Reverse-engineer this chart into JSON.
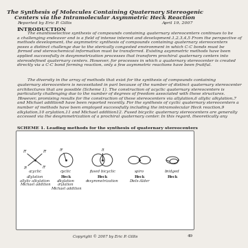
{
  "title_line1": "The Synthesis of Molecules Containing Quaternary Stereogenic",
  "title_line2": "Centers via the Intramolecular Asymmetric Heck Reaction",
  "reported_by": "Reported by Eric P. Gillis",
  "date": "April 19, 2007",
  "section_title": "INTRODUCTION",
  "body1": "        The enantioselective synthesis of compounds containing quaternary stereocenters continues to be\na challenging endeavor and is a field of intense interest and development.1,2,3,4,5 From the perspective of\nmethods development, the asymmetric synthesis of compounds containing quaternary stereocenters\nposes a distinct challenge due to the sterically congested environment in which C-C bonds must be\nformed and stereochemical information must be transferred. Existing asymmetric methods have been\napplied successfully in desymmetrization processes that transform prochiral quaternary centers into\nstereodefined quaternary centers. However, for processes in which a quaternary stereocenter is created\ndirectly via a C-C bond forming reaction, only a few asymmetric reactions have been fruitful.",
  "body2": "        The diversity in the array of methods that exist for the synthesis of compounds containing\nquaternary stereocenters is necessitated in part because of the number of distinct quaternary stereocenter\narchitectures that are possible (Scheme 1). The construction of acyclic quaternary stereocenters is\nparticularly challenging due to the number of degrees of freedom associated with these structures.\nHowever, promising results for the construction of these stereocenters via allylation,6 allylic alkylation,7\nand Michael addition8 have been reported recently. For the synthesis of cyclic quaternary stereocenters a\nnumber of methods have been employed successfully including the intramolecular Heck reaction,9\nalkylation,10 arylation,11 and Michael addition12. Fused bicyclic quaternary stereocenters are generally\naccessed via the desymmetrization of a prochiral quaternary center. In this regard, theoretically any",
  "scheme_label": "SCHEME 1. Leading methods for the synthesis of quaternary stereocenters",
  "categories": [
    "acyclic",
    "cyclic",
    "fused bicyclic",
    "spiro",
    "bridged"
  ],
  "method_labels": [
    [
      "allylation",
      "allylic alkylation",
      "Michael addition"
    ],
    [
      "Heck",
      "alkylation",
      "arylation",
      "Michael addition"
    ],
    [
      "Heck",
      "desymmetrization"
    ],
    [
      "Heck",
      "Diels-Alder"
    ],
    [
      "Heck"
    ]
  ],
  "method_bold": [
    [
      false,
      false,
      false
    ],
    [
      true,
      false,
      false,
      false
    ],
    [
      true,
      false
    ],
    [
      true,
      false
    ],
    [
      true
    ]
  ],
  "copyright": "Copyright © 2007 by Eric P. Gillis",
  "page_num": "49",
  "bg_color": "#f0ede8",
  "text_color": "#2a2a2a",
  "box_color": "#ffffff"
}
